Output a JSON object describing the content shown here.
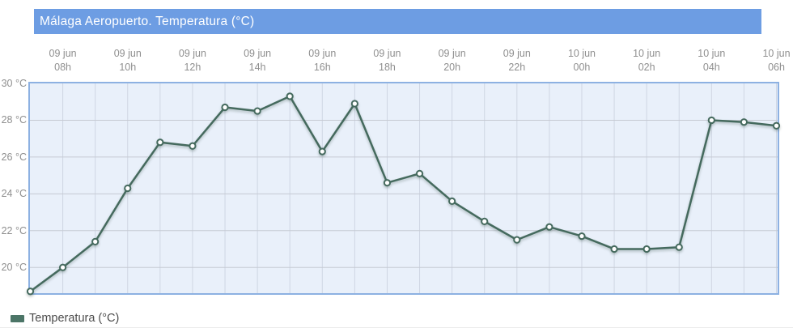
{
  "header": {
    "title": "Málaga Aeropuerto. Temperatura (°C)"
  },
  "legend": {
    "label": "Temperatura (°C)"
  },
  "colors": {
    "title-bar-bg": "#6d9de3",
    "title-text": "#ffffff",
    "plot-bg": "#e9f0fa",
    "plot-border": "#8db1e2",
    "grid-h": "#c6cad3",
    "grid-v": "#cfd6e3",
    "line": "#456a5e",
    "marker-fill": "#ffffff",
    "legend-marker": "#4c7567",
    "axis-label": "#8f8f8f",
    "legend-text": "#4c4c4c"
  },
  "chart_data": {
    "type": "line",
    "title": "Málaga Aeropuerto. Temperatura (°C)",
    "xlabel": "",
    "ylabel": "Temperatura (°C)",
    "ylim": [
      18.6,
      30
    ],
    "y_ticks": [
      30,
      28,
      26,
      24,
      22,
      20
    ],
    "y_tick_suffix": " °C",
    "grid": true,
    "legend_position": "bottom-left",
    "series": [
      {
        "name": "Temperatura (°C)",
        "x": [
          "09 jun 07h",
          "09 jun 08h",
          "09 jun 09h",
          "09 jun 10h",
          "09 jun 11h",
          "09 jun 12h",
          "09 jun 13h",
          "09 jun 14h",
          "09 jun 15h",
          "09 jun 16h",
          "09 jun 17h",
          "09 jun 18h",
          "09 jun 19h",
          "09 jun 20h",
          "09 jun 21h",
          "09 jun 22h",
          "09 jun 23h",
          "10 jun 00h",
          "10 jun 01h",
          "10 jun 02h",
          "10 jun 03h",
          "10 jun 04h",
          "10 jun 05h",
          "10 jun 06h"
        ],
        "values": [
          18.7,
          20.0,
          21.4,
          24.3,
          26.8,
          26.6,
          28.7,
          28.5,
          29.3,
          26.3,
          28.9,
          24.6,
          25.1,
          23.6,
          22.5,
          21.5,
          22.2,
          21.7,
          21.0,
          21.0,
          21.1,
          28.0,
          27.9,
          27.7
        ]
      }
    ],
    "x_ticks": [
      {
        "index": 1,
        "date": "09 jun",
        "hour": "08h"
      },
      {
        "index": 3,
        "date": "09 jun",
        "hour": "10h"
      },
      {
        "index": 5,
        "date": "09 jun",
        "hour": "12h"
      },
      {
        "index": 7,
        "date": "09 jun",
        "hour": "14h"
      },
      {
        "index": 9,
        "date": "09 jun",
        "hour": "16h"
      },
      {
        "index": 11,
        "date": "09 jun",
        "hour": "18h"
      },
      {
        "index": 13,
        "date": "09 jun",
        "hour": "20h"
      },
      {
        "index": 15,
        "date": "09 jun",
        "hour": "22h"
      },
      {
        "index": 17,
        "date": "10 jun",
        "hour": "00h"
      },
      {
        "index": 19,
        "date": "10 jun",
        "hour": "02h"
      },
      {
        "index": 21,
        "date": "10 jun",
        "hour": "04h"
      },
      {
        "index": 23,
        "date": "10 jun",
        "hour": "06h"
      }
    ]
  }
}
